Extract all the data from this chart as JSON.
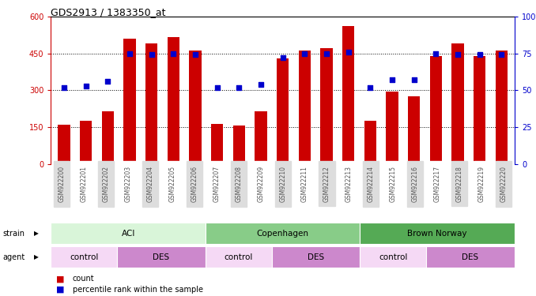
{
  "title": "GDS2913 / 1383350_at",
  "samples": [
    "GSM922200",
    "GSM922201",
    "GSM922202",
    "GSM922203",
    "GSM922204",
    "GSM922205",
    "GSM922206",
    "GSM922207",
    "GSM922208",
    "GSM922209",
    "GSM922210",
    "GSM922211",
    "GSM922212",
    "GSM922213",
    "GSM922214",
    "GSM922215",
    "GSM922216",
    "GSM922217",
    "GSM922218",
    "GSM922219",
    "GSM922220"
  ],
  "counts": [
    160,
    175,
    215,
    510,
    490,
    515,
    460,
    163,
    158,
    215,
    430,
    460,
    470,
    560,
    175,
    295,
    275,
    440,
    490,
    440,
    460
  ],
  "percentiles": [
    52,
    53,
    56,
    75,
    74,
    75,
    74,
    52,
    52,
    54,
    72,
    75,
    75,
    76,
    52,
    57,
    57,
    75,
    74,
    74,
    74
  ],
  "bar_color": "#cc0000",
  "dot_color": "#0000cc",
  "ylim_left": [
    0,
    600
  ],
  "ylim_right": [
    0,
    100
  ],
  "yticks_left": [
    0,
    150,
    300,
    450,
    600
  ],
  "yticks_right": [
    0,
    25,
    50,
    75,
    100
  ],
  "grid_lines": [
    150,
    300,
    450
  ],
  "strain_groups": [
    {
      "label": "ACI",
      "start": 0,
      "end": 7,
      "color": "#d9f5d9"
    },
    {
      "label": "Copenhagen",
      "start": 7,
      "end": 14,
      "color": "#88cc88"
    },
    {
      "label": "Brown Norway",
      "start": 14,
      "end": 21,
      "color": "#55aa55"
    }
  ],
  "agent_groups": [
    {
      "label": "control",
      "start": 0,
      "end": 3,
      "color": "#f5d9f5"
    },
    {
      "label": "DES",
      "start": 3,
      "end": 7,
      "color": "#cc88cc"
    },
    {
      "label": "control",
      "start": 7,
      "end": 10,
      "color": "#f5d9f5"
    },
    {
      "label": "DES",
      "start": 10,
      "end": 14,
      "color": "#cc88cc"
    },
    {
      "label": "control",
      "start": 14,
      "end": 17,
      "color": "#f5d9f5"
    },
    {
      "label": "DES",
      "start": 17,
      "end": 21,
      "color": "#cc88cc"
    }
  ],
  "bg_color": "#ffffff",
  "left_axis_color": "#cc0000",
  "right_axis_color": "#0000cc",
  "tick_label_color": "#555555",
  "tick_bg_even": "#dddddd",
  "tick_bg_odd": "#ffffff"
}
